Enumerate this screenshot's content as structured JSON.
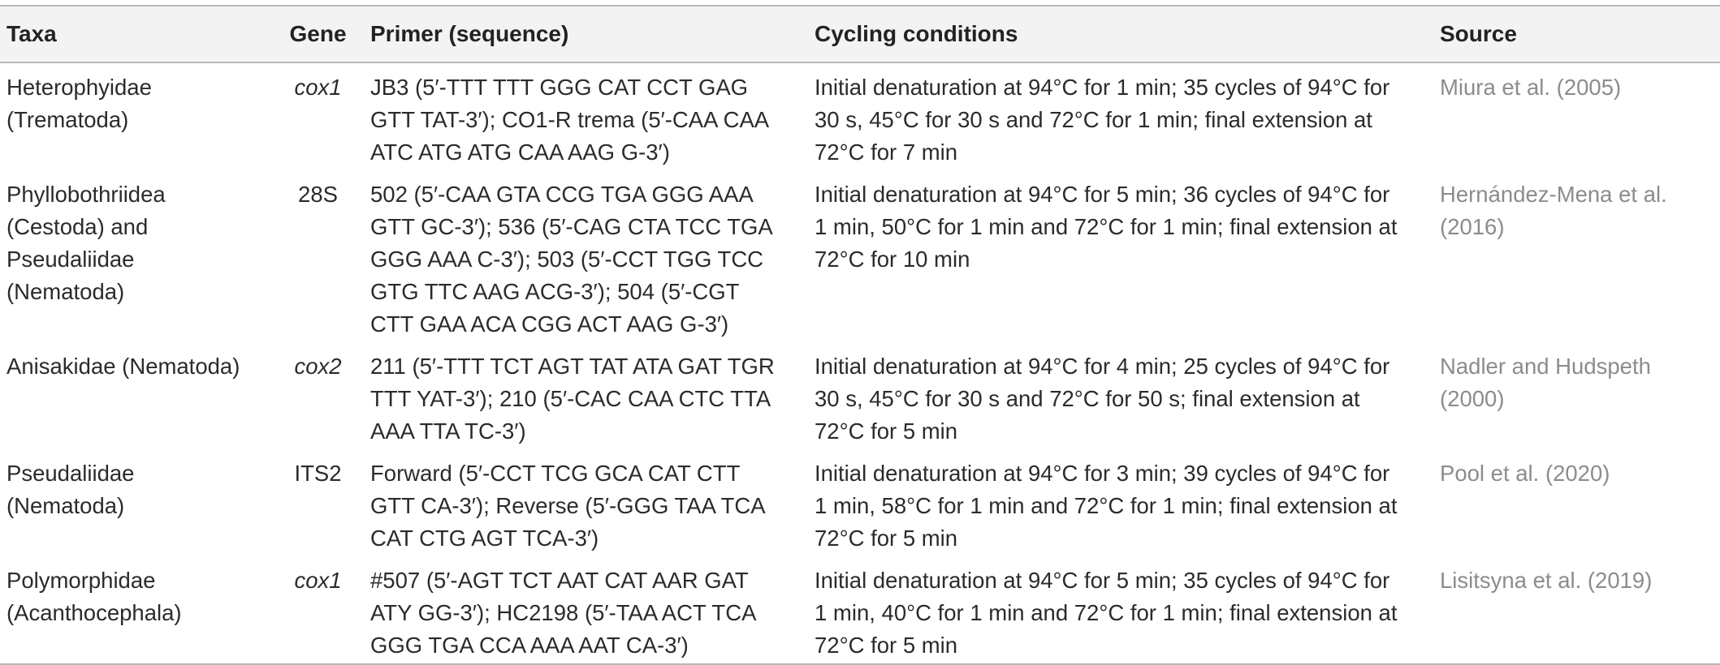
{
  "table": {
    "headers": {
      "taxa": "Taxa",
      "gene": "Gene",
      "primer": "Primer (sequence)",
      "cycling": "Cycling conditions",
      "source": "Source"
    },
    "rows": [
      {
        "taxa_lines": [
          "Heterophyidae",
          "(Trematoda)"
        ],
        "gene": "cox1",
        "gene_italic": true,
        "primer_lines": [
          "JB3 (5′-TTT TTT GGG CAT CCT GAG",
          "GTT TAT-3′); CO1-R trema (5′-CAA CAA",
          "ATC ATG ATG CAA AAG G-3′)"
        ],
        "cycling_lines": [
          "Initial denaturation at 94°C for 1 min; 35 cycles of 94°C for",
          "30 s, 45°C for 30 s and 72°C for 1 min; final extension at",
          "72°C for 7 min"
        ],
        "source_lines": [
          "Miura et al. (2005)"
        ]
      },
      {
        "taxa_lines": [
          "Phyllobothriidea",
          "(Cestoda) and",
          "Pseudaliidae",
          "(Nematoda)"
        ],
        "gene": "28S",
        "gene_italic": false,
        "primer_lines": [
          "502 (5′-CAA GTA CCG TGA GGG AAA",
          "GTT GC-3′); 536 (5′-CAG CTA TCC TGA",
          "GGG AAA C-3′); 503 (5′-CCT TGG TCC",
          "GTG TTC AAG ACG-3′); 504 (5′-CGT",
          "CTT GAA ACA CGG ACT AAG G-3′)"
        ],
        "cycling_lines": [
          "Initial denaturation at 94°C for 5 min; 36 cycles of 94°C for",
          "1 min, 50°C for 1 min and 72°C for 1 min; final extension at",
          "72°C for 10 min"
        ],
        "source_lines": [
          "Hernández-Mena et al.",
          "(2016)"
        ]
      },
      {
        "taxa_lines": [
          "Anisakidae (Nematoda)"
        ],
        "gene": "cox2",
        "gene_italic": true,
        "primer_lines": [
          "211 (5′-TTT TCT AGT TAT ATA GAT TGR",
          "TTT YAT-3′); 210 (5′-CAC CAA CTC TTA",
          "AAA TTA TC-3′)"
        ],
        "cycling_lines": [
          "Initial denaturation at 94°C for 4 min; 25 cycles of 94°C for",
          "30 s, 45°C for 30 s and 72°C for 50 s; final extension at",
          "72°C for 5 min"
        ],
        "source_lines": [
          "Nadler and Hudspeth",
          "(2000)"
        ]
      },
      {
        "taxa_lines": [
          "Pseudaliidae",
          "(Nematoda)"
        ],
        "gene": "ITS2",
        "gene_italic": false,
        "primer_lines": [
          "Forward (5′-CCT TCG GCA CAT CTT",
          "GTT CA-3′); Reverse (5′-GGG TAA TCA",
          "CAT CTG AGT TCA-3′)"
        ],
        "cycling_lines": [
          "Initial denaturation at 94°C for 3 min; 39 cycles of 94°C for",
          "1 min, 58°C for 1 min and 72°C for 1 min; final extension at",
          "72°C for 5 min"
        ],
        "source_lines": [
          "Pool et al. (2020)"
        ]
      },
      {
        "taxa_lines": [
          "Polymorphidae",
          "(Acanthocephala)"
        ],
        "gene": "cox1",
        "gene_italic": true,
        "primer_lines": [
          "#507 (5′-AGT TCT AAT CAT AAR GAT",
          "ATY GG-3′); HC2198 (5′-TAA ACT TCA",
          "GGG TGA CCA AAA AAT CA-3′)"
        ],
        "cycling_lines": [
          "Initial denaturation at 94°C for 5 min; 35 cycles of 94°C for",
          "1 min, 40°C for 1 min and 72°C for 1 min; final extension at",
          "72°C for 5 min"
        ],
        "source_lines": [
          "Lisitsyna et al. (2019)"
        ]
      }
    ]
  }
}
